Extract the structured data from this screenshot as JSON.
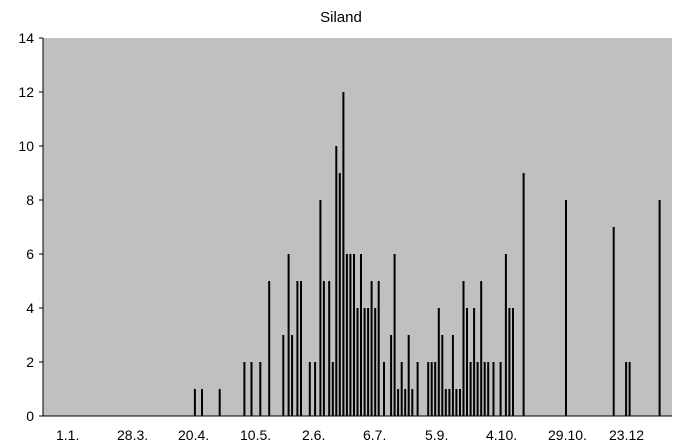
{
  "chart_data": {
    "type": "bar",
    "title": "Siland",
    "xlabel": "",
    "ylabel": "",
    "ylim": [
      0,
      14
    ],
    "y_ticks": [
      0,
      2,
      4,
      6,
      8,
      10,
      12,
      14
    ],
    "x_tick_labels": [
      "1.1.",
      "28.3.",
      "20.4.",
      "10.5.",
      "2.6.",
      "6.7.",
      "5.9.",
      "4.10.",
      "29.10.",
      "23.12"
    ],
    "x_axis_unit": "day of year (tick labels are day.month)",
    "x_range_days": [
      1,
      357
    ],
    "grid": false,
    "legend": "none",
    "colors": {
      "plot_area": "#c0c0c0",
      "bars": "#000000",
      "page": "#ffffff"
    },
    "bars": [
      {
        "day": 87,
        "value": 1
      },
      {
        "day": 91,
        "value": 1
      },
      {
        "day": 101,
        "value": 1
      },
      {
        "day": 115,
        "value": 2
      },
      {
        "day": 119,
        "value": 2
      },
      {
        "day": 124,
        "value": 2
      },
      {
        "day": 129,
        "value": 5
      },
      {
        "day": 137,
        "value": 3
      },
      {
        "day": 140,
        "value": 6
      },
      {
        "day": 142,
        "value": 3
      },
      {
        "day": 145,
        "value": 5
      },
      {
        "day": 147,
        "value": 5
      },
      {
        "day": 152,
        "value": 2
      },
      {
        "day": 155,
        "value": 2
      },
      {
        "day": 158,
        "value": 8
      },
      {
        "day": 160,
        "value": 5
      },
      {
        "day": 163,
        "value": 5
      },
      {
        "day": 165,
        "value": 2
      },
      {
        "day": 167,
        "value": 10
      },
      {
        "day": 169,
        "value": 9
      },
      {
        "day": 171,
        "value": 12
      },
      {
        "day": 173,
        "value": 6
      },
      {
        "day": 175,
        "value": 6
      },
      {
        "day": 177,
        "value": 6
      },
      {
        "day": 179,
        "value": 4
      },
      {
        "day": 181,
        "value": 6
      },
      {
        "day": 183,
        "value": 4
      },
      {
        "day": 185,
        "value": 4
      },
      {
        "day": 187,
        "value": 5
      },
      {
        "day": 189,
        "value": 4
      },
      {
        "day": 191,
        "value": 5
      },
      {
        "day": 194,
        "value": 2
      },
      {
        "day": 198,
        "value": 3
      },
      {
        "day": 200,
        "value": 6
      },
      {
        "day": 202,
        "value": 1
      },
      {
        "day": 204,
        "value": 2
      },
      {
        "day": 206,
        "value": 1
      },
      {
        "day": 208,
        "value": 3
      },
      {
        "day": 210,
        "value": 1
      },
      {
        "day": 213,
        "value": 2
      },
      {
        "day": 219,
        "value": 2
      },
      {
        "day": 221,
        "value": 2
      },
      {
        "day": 223,
        "value": 2
      },
      {
        "day": 225,
        "value": 4
      },
      {
        "day": 227,
        "value": 3
      },
      {
        "day": 229,
        "value": 1
      },
      {
        "day": 231,
        "value": 1
      },
      {
        "day": 233,
        "value": 3
      },
      {
        "day": 235,
        "value": 1
      },
      {
        "day": 237,
        "value": 1
      },
      {
        "day": 239,
        "value": 5
      },
      {
        "day": 241,
        "value": 4
      },
      {
        "day": 243,
        "value": 2
      },
      {
        "day": 245,
        "value": 4
      },
      {
        "day": 247,
        "value": 2
      },
      {
        "day": 249,
        "value": 5
      },
      {
        "day": 251,
        "value": 2
      },
      {
        "day": 253,
        "value": 2
      },
      {
        "day": 256,
        "value": 2
      },
      {
        "day": 260,
        "value": 2
      },
      {
        "day": 263,
        "value": 6
      },
      {
        "day": 265,
        "value": 4
      },
      {
        "day": 267,
        "value": 4
      },
      {
        "day": 273,
        "value": 9
      },
      {
        "day": 297,
        "value": 8
      },
      {
        "day": 324,
        "value": 7
      },
      {
        "day": 331,
        "value": 2
      },
      {
        "day": 333,
        "value": 2
      },
      {
        "day": 350,
        "value": 8
      }
    ]
  }
}
